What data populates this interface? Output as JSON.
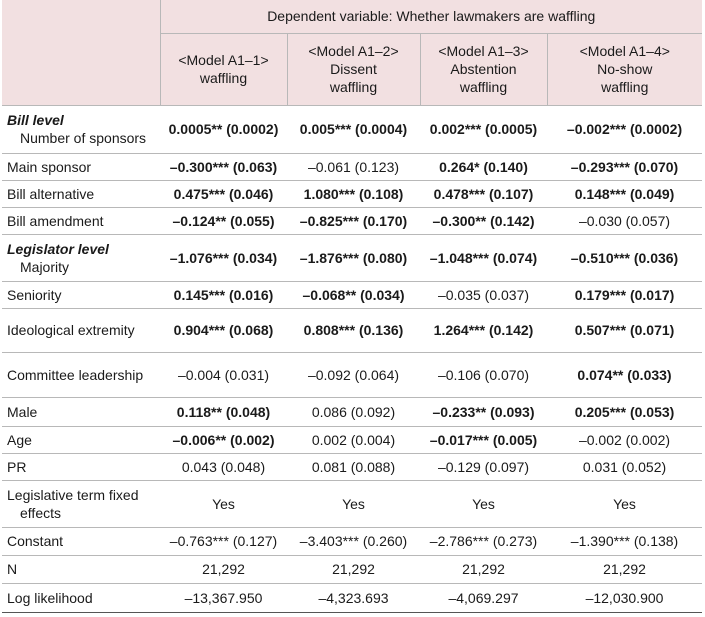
{
  "table": {
    "header": {
      "dependent": "Dependent variable: Whether lawmakers are waffling",
      "models": [
        [
          "<Model A1–1>",
          "waffling"
        ],
        [
          "<Model A1–2>",
          "Dissent",
          "waffling"
        ],
        [
          "<Model A1–3>",
          "Abstention",
          "waffling"
        ],
        [
          "<Model A1–4>",
          "No-show",
          "waffling"
        ]
      ]
    },
    "rows": [
      {
        "group": "Bill level",
        "label": "Number of sponsors",
        "cells": [
          "0.0005** (0.0002)",
          "0.005*** (0.0004)",
          "0.002*** (0.0005)",
          "–0.002*** (0.0002)"
        ],
        "bold": [
          true,
          true,
          true,
          true
        ]
      },
      {
        "label": "Main sponsor",
        "cells": [
          "–0.300*** (0.063)",
          "–0.061 (0.123)",
          "0.264* (0.140)",
          "–0.293*** (0.070)"
        ],
        "bold": [
          true,
          false,
          true,
          true
        ]
      },
      {
        "label": "Bill alternative",
        "cells": [
          "0.475*** (0.046)",
          "1.080*** (0.108)",
          "0.478*** (0.107)",
          "0.148*** (0.049)"
        ],
        "bold": [
          true,
          true,
          true,
          true
        ]
      },
      {
        "label": "Bill amendment",
        "cells": [
          "–0.124** (0.055)",
          "–0.825*** (0.170)",
          "–0.300** (0.142)",
          "–0.030 (0.057)"
        ],
        "bold": [
          true,
          true,
          true,
          false
        ]
      },
      {
        "group": "Legislator level",
        "label": "Majority",
        "cells": [
          "–1.076*** (0.034)",
          "–1.876*** (0.080)",
          "–1.048*** (0.074)",
          "–0.510*** (0.036)"
        ],
        "bold": [
          true,
          true,
          true,
          true
        ]
      },
      {
        "label": "Seniority",
        "cells": [
          "0.145*** (0.016)",
          "–0.068** (0.034)",
          "–0.035 (0.037)",
          "0.179*** (0.017)"
        ],
        "bold": [
          true,
          true,
          false,
          true
        ]
      },
      {
        "label": "Ideological extremity",
        "cells": [
          "0.904*** (0.068)",
          "0.808*** (0.136)",
          "1.264*** (0.142)",
          "0.507*** (0.071)"
        ],
        "bold": [
          true,
          true,
          true,
          true
        ]
      },
      {
        "label": "Committee leadership",
        "cells": [
          "–0.004 (0.031)",
          "–0.092 (0.064)",
          "–0.106 (0.070)",
          "0.074** (0.033)"
        ],
        "bold": [
          false,
          false,
          false,
          true
        ]
      },
      {
        "label": "Male",
        "cells": [
          "0.118** (0.048)",
          "0.086 (0.092)",
          "–0.233** (0.093)",
          "0.205*** (0.053)"
        ],
        "bold": [
          true,
          false,
          true,
          true
        ]
      },
      {
        "label": "Age",
        "cells": [
          "–0.006** (0.002)",
          "0.002 (0.004)",
          "–0.017*** (0.005)",
          "–0.002 (0.002)"
        ],
        "bold": [
          true,
          false,
          true,
          false
        ]
      },
      {
        "label": "PR",
        "cells": [
          "0.043 (0.048)",
          "0.081 (0.088)",
          "–0.129 (0.097)",
          "0.031 (0.052)"
        ],
        "bold": [
          false,
          false,
          false,
          false
        ]
      },
      {
        "label": "Legislative term fixed effects",
        "cells": [
          "Yes",
          "Yes",
          "Yes",
          "Yes"
        ],
        "bold": [
          false,
          false,
          false,
          false
        ]
      },
      {
        "label": "Constant",
        "cells": [
          "–0.763*** (0.127)",
          "–3.403*** (0.260)",
          "–2.786*** (0.273)",
          "–1.390*** (0.138)"
        ],
        "bold": [
          false,
          false,
          false,
          false
        ]
      },
      {
        "label": "N",
        "cells": [
          "21,292",
          "21,292",
          "21,292",
          "21,292"
        ],
        "bold": [
          false,
          false,
          false,
          false
        ]
      },
      {
        "label": "Log likelihood",
        "cells": [
          "–13,367.950",
          "–4,323.693",
          "–4,069.297",
          "–12,030.900"
        ],
        "bold": [
          false,
          false,
          false,
          false
        ]
      }
    ]
  }
}
